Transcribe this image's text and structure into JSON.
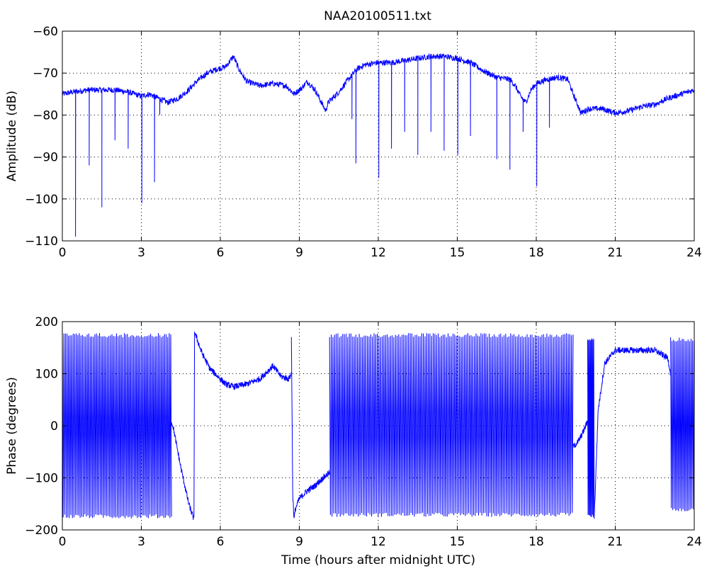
{
  "title": "NAA20100511.txt",
  "colors": {
    "line": "#0000ff",
    "axes": "#000000",
    "grid": "#000000",
    "background": "#ffffff"
  },
  "chart_data": [
    {
      "type": "line",
      "title": "NAA20100511.txt",
      "xlabel": "",
      "ylabel": "Amplitude (dB)",
      "xlim": [
        0,
        24
      ],
      "ylim": [
        -110,
        -60
      ],
      "xticks": [
        0,
        3,
        6,
        9,
        12,
        15,
        18,
        21,
        24
      ],
      "yticks": [
        -110,
        -100,
        -90,
        -80,
        -70,
        -60
      ],
      "xtick_labels": [
        "0",
        "3",
        "6",
        "9",
        "12",
        "15",
        "18",
        "21",
        "24"
      ],
      "ytick_labels": [
        "−110",
        "−100",
        "−90",
        "−80",
        "−70",
        "−60"
      ],
      "grid": true,
      "baseline": {
        "x": [
          0,
          0.4,
          1,
          2,
          2.5,
          3,
          3.3,
          4,
          4.4,
          4.8,
          5.1,
          5.5,
          5.9,
          6.2,
          6.5,
          6.7,
          7,
          7.5,
          8,
          8.5,
          8.8,
          9.1,
          9.3,
          9.6,
          10,
          10.1,
          10.5,
          10.8,
          11,
          11.2,
          11.5,
          12,
          12.5,
          13,
          13.5,
          14,
          14.5,
          15,
          15.5,
          16,
          16.5,
          17,
          17.2,
          17.4,
          17.6,
          17.8,
          18,
          18.4,
          18.8,
          19.2,
          19.4,
          19.6,
          19.7,
          20,
          20.5,
          21,
          21.5,
          22,
          22.5,
          23,
          23.5,
          24
        ],
        "y": [
          -75,
          -74.5,
          -74,
          -74,
          -74.5,
          -75.5,
          -75,
          -77,
          -76,
          -74,
          -72,
          -70,
          -69,
          -68.5,
          -66,
          -69,
          -72,
          -73,
          -72.5,
          -73,
          -75,
          -73.5,
          -72,
          -74,
          -79,
          -77,
          -74.5,
          -72,
          -70.5,
          -69,
          -68,
          -67.5,
          -67.5,
          -67,
          -66.5,
          -66,
          -66,
          -66.5,
          -67.5,
          -69.5,
          -71,
          -71.5,
          -73,
          -75.5,
          -77,
          -74,
          -72.5,
          -71.5,
          -71,
          -71.5,
          -75,
          -78,
          -79.5,
          -78.5,
          -78.5,
          -79.5,
          -79,
          -78,
          -77.5,
          -76,
          -75,
          -74
        ]
      },
      "noise_db": 0.7,
      "spikes": [
        {
          "x": 0.5,
          "y": -109
        },
        {
          "x": 1.02,
          "y": -92
        },
        {
          "x": 1.5,
          "y": -102
        },
        {
          "x": 2.0,
          "y": -86
        },
        {
          "x": 2.5,
          "y": -88
        },
        {
          "x": 3.02,
          "y": -101
        },
        {
          "x": 3.5,
          "y": -96
        },
        {
          "x": 3.7,
          "y": -80
        },
        {
          "x": 11.0,
          "y": -81
        },
        {
          "x": 11.15,
          "y": -91.5
        },
        {
          "x": 12.02,
          "y": -95
        },
        {
          "x": 12.5,
          "y": -88
        },
        {
          "x": 13.0,
          "y": -84
        },
        {
          "x": 13.5,
          "y": -89.5
        },
        {
          "x": 14.0,
          "y": -84
        },
        {
          "x": 14.5,
          "y": -88.5
        },
        {
          "x": 15.02,
          "y": -89.5
        },
        {
          "x": 15.5,
          "y": -85
        },
        {
          "x": 16.5,
          "y": -90.5
        },
        {
          "x": 17.0,
          "y": -93
        },
        {
          "x": 17.5,
          "y": -84
        },
        {
          "x": 18.02,
          "y": -97
        },
        {
          "x": 18.5,
          "y": -83
        }
      ]
    },
    {
      "type": "line",
      "title": "",
      "xlabel": "Time (hours after midnight UTC)",
      "ylabel": "Phase (degrees)",
      "xlim": [
        0,
        24
      ],
      "ylim": [
        -200,
        200
      ],
      "xticks": [
        0,
        3,
        6,
        9,
        12,
        15,
        18,
        21,
        24
      ],
      "yticks": [
        -200,
        -100,
        0,
        100,
        200
      ],
      "xtick_labels": [
        "0",
        "3",
        "6",
        "9",
        "12",
        "15",
        "18",
        "21",
        "24"
      ],
      "ytick_labels": [
        "−200",
        "−100",
        "0",
        "100",
        "200"
      ],
      "grid": true,
      "oscillating_segments": [
        {
          "x": [
            0,
            4.15
          ],
          "ymin": -178,
          "ymax": 178,
          "cycles_per_hour": 17
        },
        {
          "x": [
            10.15,
            19.4
          ],
          "ymin": -175,
          "ymax": 178,
          "cycles_per_hour": 16
        },
        {
          "x": [
            19.95,
            20.2
          ],
          "ymin": -178,
          "ymax": 172,
          "cycles_per_hour": 30
        },
        {
          "x": [
            23.1,
            24
          ],
          "ymin": -165,
          "ymax": 170,
          "cycles_per_hour": 18
        }
      ],
      "smooth_segments": [
        {
          "x": [
            4.1,
            4.2,
            4.5,
            4.8,
            5.0
          ],
          "y": [
            10,
            0,
            -80,
            -150,
            -180
          ]
        },
        {
          "x": [
            5.0,
            5.02,
            5.3,
            5.6,
            5.9,
            6.2,
            6.5,
            7.0,
            7.5,
            8.0,
            8.3,
            8.6,
            8.7
          ],
          "y": [
            -180,
            180,
            140,
            110,
            95,
            80,
            75,
            80,
            90,
            115,
            95,
            90,
            100
          ]
        },
        {
          "x": [
            8.7,
            8.75,
            8.8,
            8.85,
            9.0,
            9.3,
            9.6,
            9.9,
            10.15
          ],
          "y": [
            170,
            -130,
            -180,
            -160,
            -140,
            -125,
            -115,
            -100,
            -90
          ]
        },
        {
          "x": [
            19.4,
            19.6,
            19.8,
            19.95
          ],
          "y": [
            -40,
            -30,
            -10,
            10
          ]
        },
        {
          "x": [
            20.2,
            20.35,
            20.6,
            21,
            21.5,
            22,
            22.5,
            23.0,
            23.1
          ],
          "y": [
            -180,
            30,
            120,
            145,
            145,
            145,
            145,
            130,
            100
          ]
        }
      ],
      "noise_deg": 6
    }
  ]
}
